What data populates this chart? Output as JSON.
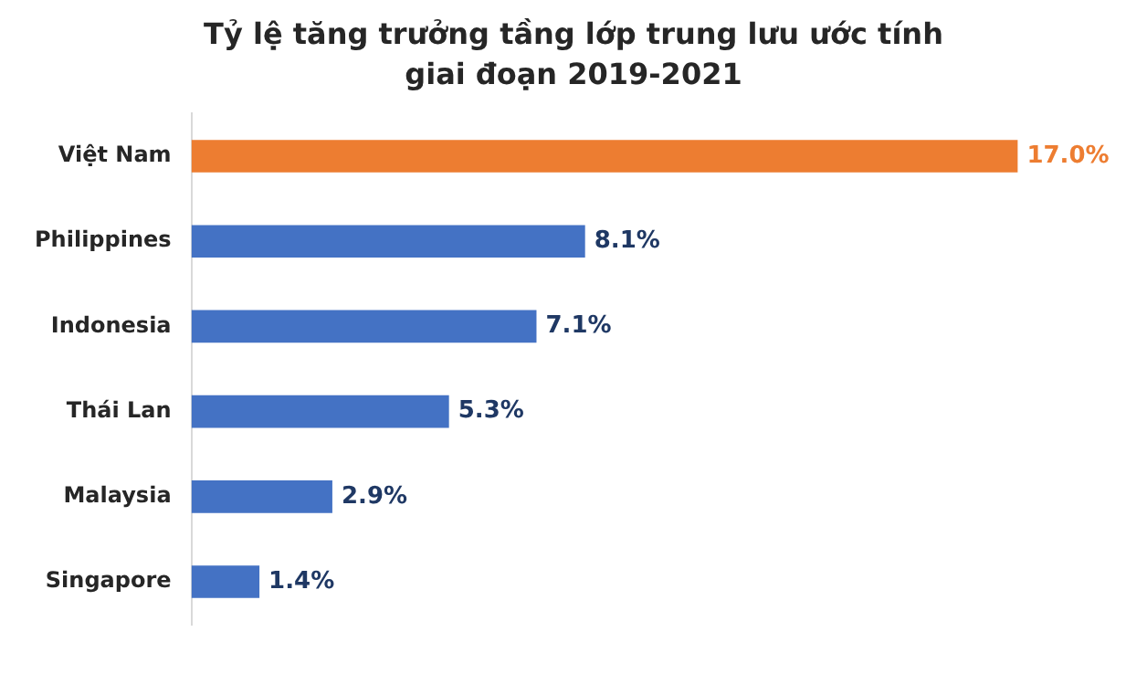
{
  "chart_data": {
    "type": "bar",
    "orientation": "horizontal",
    "title": "Tỷ lệ tăng trưởng tầng lớp trung lưu ước tính giai đoạn 2019-2021",
    "categories": [
      "Việt Nam",
      "Philippines",
      "Indonesia",
      "Thái Lan",
      "Malaysia",
      "Singapore"
    ],
    "values": [
      17.0,
      8.1,
      7.1,
      5.3,
      2.9,
      1.4
    ],
    "colors": [
      "#ed7d31",
      "#4472c4",
      "#4472c4",
      "#4472c4",
      "#4472c4",
      "#4472c4"
    ],
    "value_labels": [
      "17.0%",
      "8.1%",
      "7.1%",
      "5.3%",
      "2.9%",
      "1.4%"
    ]
  }
}
